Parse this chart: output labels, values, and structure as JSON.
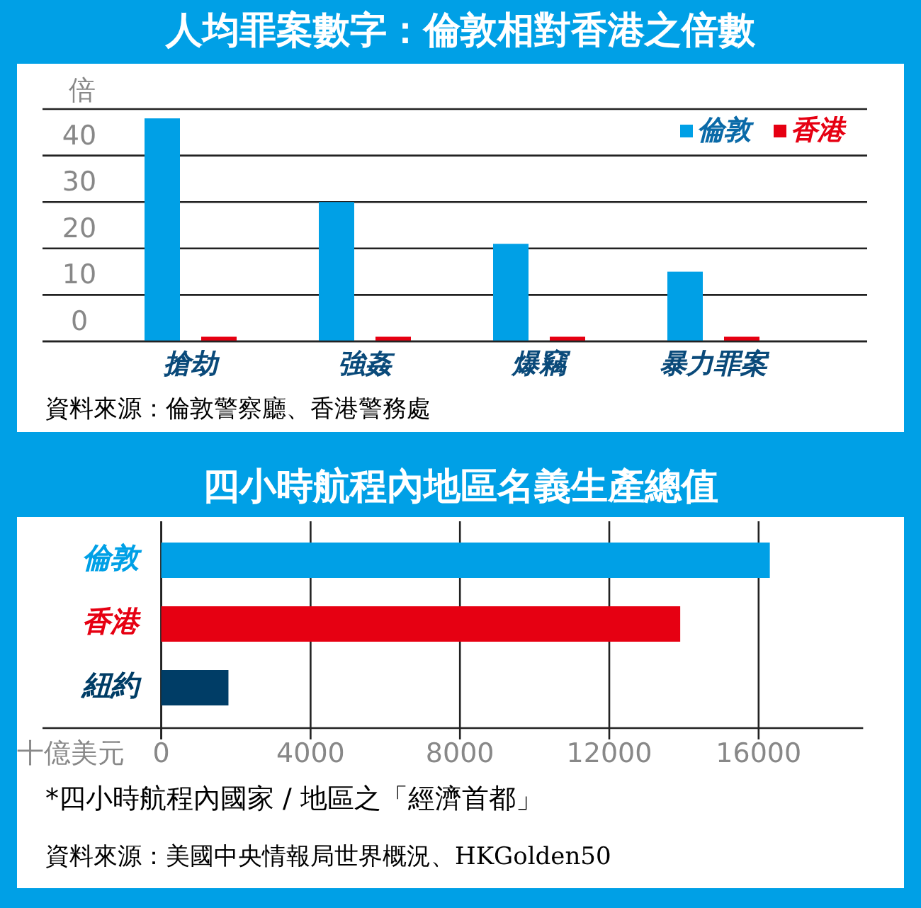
{
  "chart_data": [
    {
      "type": "bar",
      "title": "人均罪案數字：倫敦相對香港之倍數",
      "ylabel": "倍",
      "categories": [
        "搶劫",
        "強姦",
        "爆竊",
        "暴力罪案"
      ],
      "series": [
        {
          "name": "倫敦",
          "color": "#00a0e6",
          "values": [
            48,
            30,
            21,
            15
          ]
        },
        {
          "name": "香港",
          "color": "#e60012",
          "values": [
            1,
            1,
            1,
            1
          ]
        }
      ],
      "ylim": [
        0,
        50
      ],
      "yticks": [
        0,
        10,
        20,
        30,
        40,
        {
          "value": 50,
          "label": null
        }
      ],
      "grid": "y",
      "legend": "top right",
      "annotations": [
        "資料來源：倫敦警察廳、香港警務處"
      ]
    },
    {
      "type": "bar",
      "orientation": "horizontal",
      "title": "四小時航程內地區名義生產總值",
      "xlabel": "十億美元",
      "categories": [
        "倫敦",
        "香港",
        "紐約"
      ],
      "values": [
        16300,
        13900,
        1800
      ],
      "colors": [
        "#00a0e6",
        "#e60012",
        "#003d66"
      ],
      "xlim": [
        0,
        18800
      ],
      "xticks": [
        0,
        4000,
        8000,
        12000,
        16000
      ],
      "grid": "x",
      "annotations": [
        "*四小時航程內國家 / 地區之「經濟首都」",
        "資料來源：美國中央情報局世界概況、HKGolden50"
      ]
    }
  ]
}
